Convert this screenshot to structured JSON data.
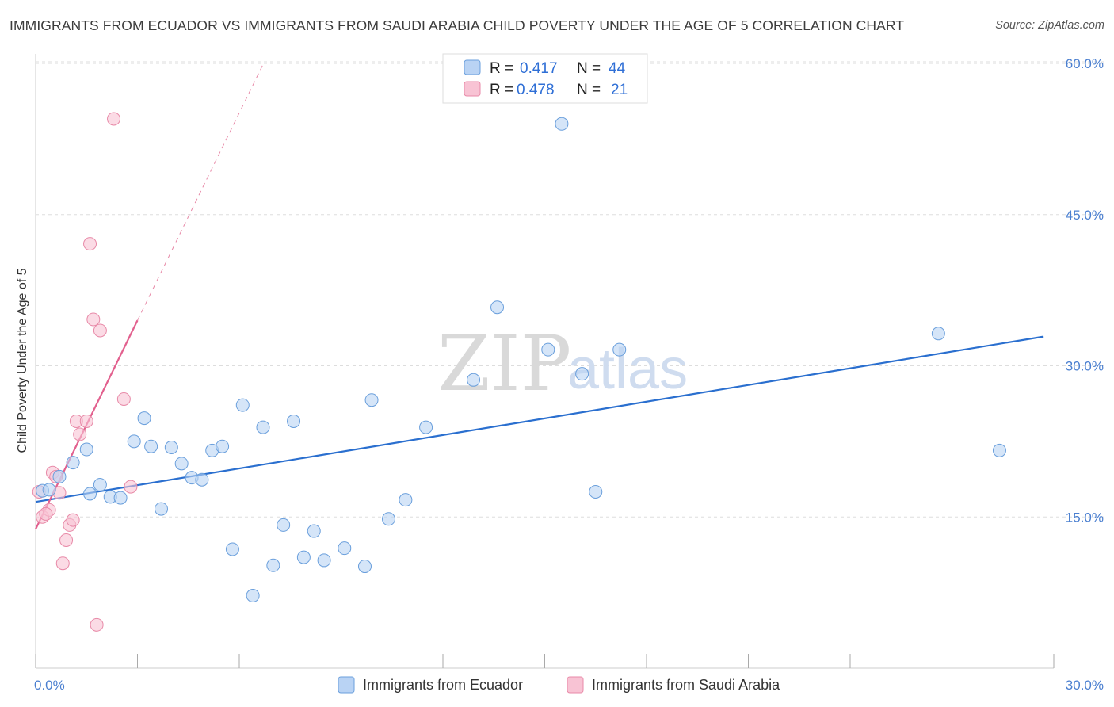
{
  "title": "IMMIGRANTS FROM ECUADOR VS IMMIGRANTS FROM SAUDI ARABIA CHILD POVERTY UNDER THE AGE OF 5 CORRELATION CHART",
  "source": "Source: ZipAtlas.com",
  "watermark": {
    "zip": "ZIP",
    "atlas": "atlas"
  },
  "colors": {
    "ecuador_fill": "#b9d3f4",
    "ecuador_stroke": "#6a9fdc",
    "ecuador_line": "#2a6fcf",
    "saudi_fill": "#f8c3d4",
    "saudi_stroke": "#e88aa8",
    "saudi_line": "#e2608e",
    "grid": "#dddddd",
    "axis_label": "#4a7fd0"
  },
  "legend": {
    "r_label": "R =",
    "n_label": "N =",
    "ecuador": {
      "r": "0.417",
      "n": "44"
    },
    "saudi": {
      "r": "0.478",
      "n": "21"
    }
  },
  "chart_data": {
    "type": "scatter",
    "title": "IMMIGRANTS FROM ECUADOR VS IMMIGRANTS FROM SAUDI ARABIA CHILD POVERTY UNDER THE AGE OF 5 CORRELATION CHART",
    "xlabel": "",
    "ylabel": "Child Poverty Under the Age of 5",
    "xlim": [
      0,
      30
    ],
    "ylim": [
      0,
      60
    ],
    "x_ticks": [
      "0.0%",
      "30.0%"
    ],
    "y_ticks": [
      {
        "value": 15,
        "label": "15.0%"
      },
      {
        "value": 30,
        "label": "30.0%"
      },
      {
        "value": 45,
        "label": "45.0%"
      },
      {
        "value": 60,
        "label": "60.0%"
      }
    ],
    "grid": true,
    "legend_position": "top-center",
    "series": [
      {
        "name": "Immigrants from Ecuador",
        "trend": {
          "x": [
            0,
            29.7
          ],
          "y": [
            16.5,
            32.9
          ]
        },
        "points": [
          [
            0.2,
            17.6
          ],
          [
            0.4,
            17.7
          ],
          [
            0.7,
            19.0
          ],
          [
            1.1,
            20.4
          ],
          [
            1.5,
            21.7
          ],
          [
            1.6,
            17.3
          ],
          [
            1.9,
            18.2
          ],
          [
            2.2,
            17.0
          ],
          [
            2.5,
            16.9
          ],
          [
            2.9,
            22.5
          ],
          [
            3.2,
            24.8
          ],
          [
            3.4,
            22.0
          ],
          [
            3.7,
            15.8
          ],
          [
            4.0,
            21.9
          ],
          [
            4.3,
            20.3
          ],
          [
            4.6,
            18.9
          ],
          [
            4.9,
            18.7
          ],
          [
            5.2,
            21.6
          ],
          [
            5.5,
            22.0
          ],
          [
            5.8,
            11.8
          ],
          [
            6.1,
            26.1
          ],
          [
            6.4,
            7.2
          ],
          [
            6.7,
            23.9
          ],
          [
            7.0,
            10.2
          ],
          [
            7.3,
            14.2
          ],
          [
            7.6,
            24.5
          ],
          [
            7.9,
            11.0
          ],
          [
            8.2,
            13.6
          ],
          [
            8.5,
            10.7
          ],
          [
            9.1,
            11.9
          ],
          [
            9.7,
            10.1
          ],
          [
            9.9,
            26.6
          ],
          [
            10.4,
            14.8
          ],
          [
            10.9,
            16.7
          ],
          [
            11.5,
            23.9
          ],
          [
            12.9,
            28.6
          ],
          [
            13.6,
            35.8
          ],
          [
            15.1,
            31.6
          ],
          [
            15.5,
            54.0
          ],
          [
            16.1,
            29.2
          ],
          [
            16.5,
            17.5
          ],
          [
            17.2,
            31.6
          ],
          [
            26.6,
            33.2
          ],
          [
            28.4,
            21.6
          ]
        ]
      },
      {
        "name": "Immigrants from Saudi Arabia",
        "trend": {
          "x": [
            0,
            3.0
          ],
          "y": [
            13.8,
            34.5
          ]
        },
        "trend_extension": {
          "x": [
            3.0,
            6.7
          ],
          "y": [
            34.5,
            59.9
          ]
        },
        "points": [
          [
            0.1,
            17.5
          ],
          [
            0.2,
            15.0
          ],
          [
            0.4,
            15.7
          ],
          [
            0.5,
            19.4
          ],
          [
            0.6,
            19.0
          ],
          [
            0.7,
            17.4
          ],
          [
            0.8,
            10.4
          ],
          [
            0.9,
            12.7
          ],
          [
            1.0,
            14.2
          ],
          [
            1.1,
            14.7
          ],
          [
            1.2,
            24.5
          ],
          [
            1.3,
            23.2
          ],
          [
            1.5,
            24.5
          ],
          [
            1.6,
            42.1
          ],
          [
            1.7,
            34.6
          ],
          [
            1.8,
            4.3
          ],
          [
            1.9,
            33.5
          ],
          [
            2.3,
            54.5
          ],
          [
            2.6,
            26.7
          ],
          [
            2.8,
            18.0
          ],
          [
            0.3,
            15.3
          ]
        ]
      }
    ]
  }
}
